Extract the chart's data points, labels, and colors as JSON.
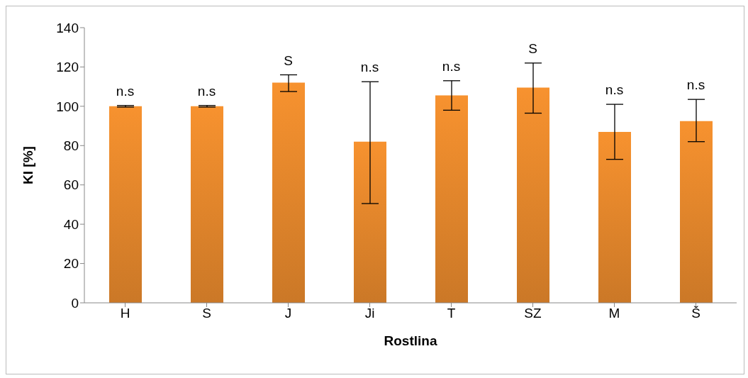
{
  "chart_data": {
    "type": "bar",
    "xlabel": "Rostlina",
    "ylabel": "KI [%]",
    "categories": [
      "H",
      "S",
      "J",
      "Ji",
      "T",
      "SZ",
      "M",
      "Š"
    ],
    "values": [
      100,
      100,
      112,
      82,
      105.5,
      109.5,
      87,
      92.5
    ],
    "errors": [
      [
        99.6,
        100.4
      ],
      [
        99.6,
        100.4
      ],
      [
        107.5,
        116
      ],
      [
        50.5,
        112.5
      ],
      [
        98,
        113
      ],
      [
        96.5,
        122
      ],
      [
        73,
        101
      ],
      [
        82,
        103.5
      ]
    ],
    "color": "#f7922f",
    "ylim": [
      0,
      140
    ],
    "yticks": [
      0,
      20,
      40,
      60,
      80,
      100,
      120,
      140
    ],
    "grid": false,
    "legend": false,
    "annotations": [
      "n.s",
      "n.s",
      "S",
      "n.s",
      "n.s",
      "S",
      "n.s",
      "n.s"
    ]
  }
}
